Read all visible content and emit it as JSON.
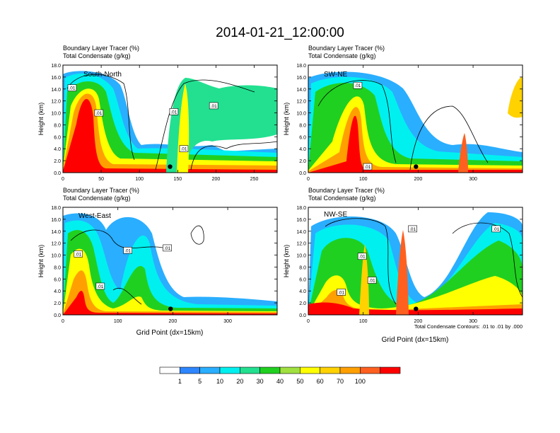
{
  "title": "2014-01-21_12:00:00",
  "panel_top_label_1": "Boundary Layer Tracer   (%)",
  "panel_top_label_2": "Total Condensate   (g/kg)",
  "y_axis_label": "Height (km)",
  "x_axis_label": "Grid Point (dx=15km)",
  "contour_note": "Total Condensate Contours: .01 to .01 by .000",
  "colorbar": {
    "colors": [
      "#ffffff",
      "#2e86ff",
      "#2aaeff",
      "#00f0f0",
      "#22e090",
      "#20d020",
      "#a0e040",
      "#ffff00",
      "#ffd200",
      "#ffa000",
      "#ff6020",
      "#ff0000"
    ],
    "labels": [
      "1",
      "5",
      "10",
      "20",
      "30",
      "40",
      "50",
      "60",
      "70",
      "100"
    ]
  },
  "chart_data": [
    {
      "type": "heatmap",
      "name": "South-North",
      "title_lines": [
        "Boundary Layer Tracer   (%)",
        "Total Condensate   (g/kg)"
      ],
      "ylabel": "Height (km)",
      "xlabel": "",
      "xlim": [
        0,
        280
      ],
      "ylim": [
        0,
        18
      ],
      "xticks": [
        0,
        50,
        100,
        150,
        200,
        250
      ],
      "xtick_labels": [
        "0",
        "50",
        "100",
        "150",
        "200",
        "250"
      ],
      "yticks": [
        0,
        2,
        4,
        6,
        8,
        10,
        12,
        14,
        16,
        18
      ],
      "ytick_labels": [
        "0.0",
        "2.0",
        "4.0",
        "6.0",
        "8.0",
        "10.0",
        "12.0",
        "14.0",
        "16.0",
        "18.0"
      ],
      "contour_labels": [
        {
          "text": ".01",
          "x": 12,
          "y": 14.2
        },
        {
          "text": ".01",
          "x": 47,
          "y": 10.0
        },
        {
          "text": ".01",
          "x": 145,
          "y": 10.2
        },
        {
          "text": ".01",
          "x": 197,
          "y": 11.2
        },
        {
          "text": ".01",
          "x": 158,
          "y": 4.0
        }
      ],
      "marker": {
        "x": 140,
        "y": 1.0
      },
      "features": [
        {
          "x": 32,
          "w": 22,
          "top": 16.5,
          "kind": "core"
        },
        {
          "x": 15,
          "w": 12,
          "top": 14.5,
          "kind": "mid"
        },
        {
          "x": 70,
          "w": 18,
          "top": 13.5,
          "kind": "mid"
        },
        {
          "x": 158,
          "w": 10,
          "top": 15.0,
          "kind": "core"
        },
        {
          "x": 190,
          "w": 40,
          "top": 14.5,
          "kind": "mid"
        },
        {
          "x": 250,
          "w": 30,
          "top": 12.0,
          "kind": "mid"
        }
      ]
    },
    {
      "type": "heatmap",
      "name": "SW-NE",
      "title_lines": [
        "Boundary Layer Tracer   (%)",
        "Total Condensate   (g/kg)"
      ],
      "ylabel": "Height (km)",
      "xlabel": "",
      "xlim": [
        0,
        390
      ],
      "ylim": [
        0,
        18
      ],
      "xticks": [
        0,
        100,
        200,
        300
      ],
      "xtick_labels": [
        "0",
        "100",
        "200",
        "300"
      ],
      "yticks": [
        0,
        2,
        4,
        6,
        8,
        10,
        12,
        14,
        16,
        18
      ],
      "ytick_labels": [
        "0.0",
        "2.0",
        "4.0",
        "6.0",
        "8.0",
        "10.0",
        "12.0",
        "14.0",
        "16.0",
        "18.0"
      ],
      "contour_labels": [
        {
          "text": ".01",
          "x": 90,
          "y": 14.6
        },
        {
          "text": ".01",
          "x": 108,
          "y": 1.0
        }
      ],
      "marker": {
        "x": 196,
        "y": 1.0
      },
      "features": [
        {
          "x": 50,
          "w": 40,
          "top": 16.0,
          "kind": "mid"
        },
        {
          "x": 95,
          "w": 20,
          "top": 16.0,
          "kind": "core"
        },
        {
          "x": 160,
          "w": 60,
          "top": 14.0,
          "kind": "mid"
        },
        {
          "x": 290,
          "w": 12,
          "top": 7.0,
          "kind": "core"
        },
        {
          "x": 370,
          "w": 20,
          "top": 15.0,
          "kind": "mid"
        }
      ]
    },
    {
      "type": "heatmap",
      "name": "West-East",
      "title_lines": [
        "Boundary Layer Tracer   (%)",
        "Total Condensate   (g/kg)"
      ],
      "ylabel": "Height (km)",
      "xlabel": "Grid Point (dx=15km)",
      "xlim": [
        0,
        390
      ],
      "ylim": [
        0,
        18
      ],
      "xticks": [
        0,
        100,
        200,
        300
      ],
      "xtick_labels": [
        "0",
        "100",
        "200",
        "300"
      ],
      "yticks": [
        0,
        2,
        4,
        6,
        8,
        10,
        12,
        14,
        16,
        18
      ],
      "ytick_labels": [
        "0.0",
        "2.0",
        "4.0",
        "6.0",
        "8.0",
        "10.0",
        "12.0",
        "14.0",
        "16.0",
        "18.0"
      ],
      "contour_labels": [
        {
          "text": ".01",
          "x": 28,
          "y": 10.2
        },
        {
          "text": ".01",
          "x": 118,
          "y": 10.8
        },
        {
          "text": ".01",
          "x": 190,
          "y": 11.2
        },
        {
          "text": ".01",
          "x": 68,
          "y": 4.8
        }
      ],
      "marker": {
        "x": 196,
        "y": 1.0
      },
      "features": [
        {
          "x": 30,
          "w": 40,
          "top": 16.0,
          "kind": "mid"
        },
        {
          "x": 60,
          "w": 16,
          "top": 13.0,
          "kind": "core"
        },
        {
          "x": 160,
          "w": 20,
          "top": 16.5,
          "kind": "mid"
        },
        {
          "x": 300,
          "w": 60,
          "top": 2.5,
          "kind": "low"
        }
      ]
    },
    {
      "type": "heatmap",
      "name": "NW-SE",
      "title_lines": [
        "Boundary Layer Tracer   (%)",
        "Total Condensate   (g/kg)"
      ],
      "ylabel": "Height (km)",
      "xlabel": "Grid Point (dx=15km)",
      "xlim": [
        0,
        390
      ],
      "ylim": [
        0,
        18
      ],
      "xticks": [
        0,
        100,
        200,
        300
      ],
      "xtick_labels": [
        "0",
        "100",
        "200",
        "300"
      ],
      "yticks": [
        0,
        2,
        4,
        6,
        8,
        10,
        12,
        14,
        16,
        18
      ],
      "ytick_labels": [
        "0.0",
        "2.0",
        "4.0",
        "6.0",
        "8.0",
        "10.0",
        "12.0",
        "14.0",
        "16.0",
        "18.0"
      ],
      "contour_labels": [
        {
          "text": ".01",
          "x": 190,
          "y": 14.4
        },
        {
          "text": ".01",
          "x": 342,
          "y": 14.4
        },
        {
          "text": ".01",
          "x": 98,
          "y": 9.8
        },
        {
          "text": ".01",
          "x": 116,
          "y": 5.8
        },
        {
          "text": ".01",
          "x": 60,
          "y": 3.8
        }
      ],
      "marker": {
        "x": 196,
        "y": 1.0
      },
      "features": [
        {
          "x": 60,
          "w": 60,
          "top": 16.0,
          "kind": "mid"
        },
        {
          "x": 100,
          "w": 16,
          "top": 13.0,
          "kind": "core"
        },
        {
          "x": 172,
          "w": 12,
          "top": 11.0,
          "kind": "core"
        },
        {
          "x": 320,
          "w": 60,
          "top": 16.0,
          "kind": "mid"
        }
      ]
    }
  ]
}
